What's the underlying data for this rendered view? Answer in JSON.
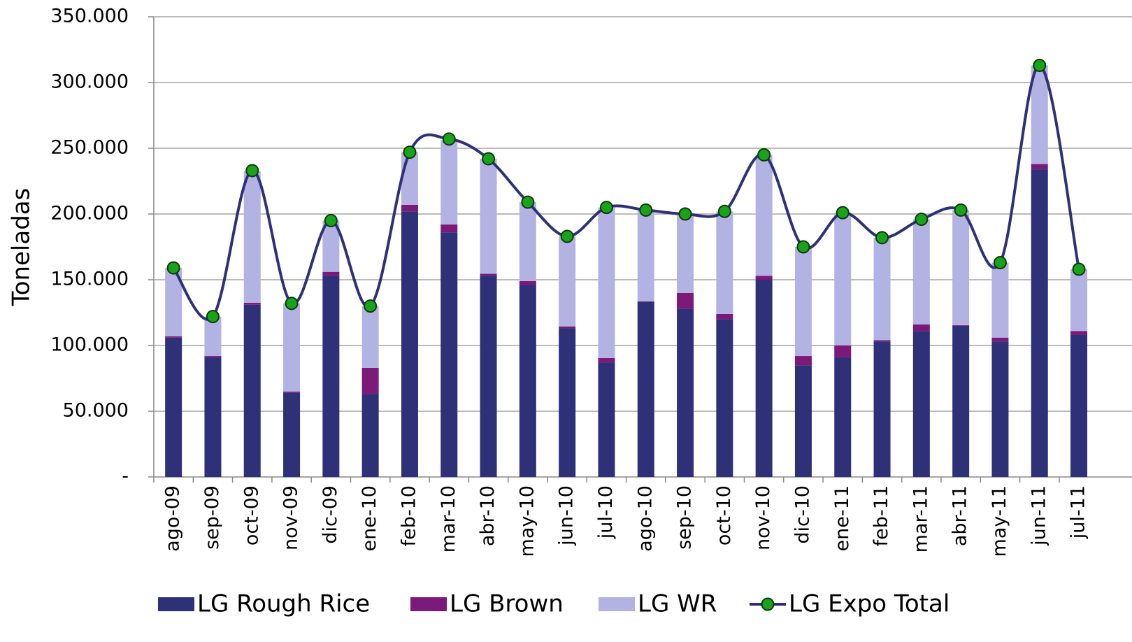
{
  "chart_data": {
    "type": "bar",
    "stacked": true,
    "y_label": "Toneladas",
    "categories": [
      "ago-09",
      "sep-09",
      "oct-09",
      "nov-09",
      "dic-09",
      "ene-10",
      "feb-10",
      "mar-10",
      "abr-10",
      "may-10",
      "jun-10",
      "jul-10",
      "ago-10",
      "sep-10",
      "oct-10",
      "nov-10",
      "dic-10",
      "ene-11",
      "feb-11",
      "mar-11",
      "abr-11",
      "may-11",
      "jun-11",
      "jul-11"
    ],
    "series": [
      {
        "name": "LG Rough Rice",
        "color": "#2e3178",
        "type": "bar",
        "values": [
          106000,
          91000,
          131000,
          64000,
          153000,
          63000,
          202000,
          186000,
          153000,
          146000,
          113000,
          87000,
          133000,
          128000,
          120000,
          150000,
          85000,
          91000,
          103000,
          111000,
          115000,
          103000,
          234000,
          108000
        ]
      },
      {
        "name": "LG Brown",
        "color": "#7b1a78",
        "type": "bar",
        "values": [
          1000,
          1000,
          1500,
          1000,
          3000,
          20000,
          5000,
          6000,
          1500,
          3000,
          1500,
          3500,
          500,
          12000,
          4000,
          3000,
          7000,
          9000,
          1000,
          5000,
          500,
          3000,
          4000,
          3000
        ]
      },
      {
        "name": "LG WR",
        "color": "#b2b3e3",
        "type": "bar",
        "values": [
          52000,
          30000,
          100000,
          67000,
          39000,
          47000,
          40000,
          64000,
          87500,
          60000,
          68500,
          114500,
          69500,
          60000,
          78000,
          92000,
          83000,
          101000,
          78000,
          80000,
          87500,
          57000,
          75000,
          47000
        ]
      },
      {
        "name": "LG Expo Total",
        "color": "#2e3178",
        "marker_color": "#1aa31a",
        "type": "line",
        "smooth": true,
        "values": [
          159000,
          122000,
          233000,
          132000,
          195000,
          130000,
          247000,
          257000,
          242000,
          209000,
          183000,
          205000,
          203000,
          200000,
          202000,
          245000,
          175000,
          201000,
          182000,
          196000,
          203000,
          163000,
          313000,
          158000
        ]
      }
    ],
    "ylim": [
      0,
      350000
    ],
    "yticks": [
      {
        "value": 0,
        "label": "-"
      },
      {
        "value": 50000,
        "label": "50.000"
      },
      {
        "value": 100000,
        "label": "100.000"
      },
      {
        "value": 150000,
        "label": "150.000"
      },
      {
        "value": 200000,
        "label": "200.000"
      },
      {
        "value": 250000,
        "label": "250.000"
      },
      {
        "value": 300000,
        "label": "300.000"
      },
      {
        "value": 350000,
        "label": "350.000"
      }
    ],
    "grid": true,
    "legend": "bottom"
  }
}
